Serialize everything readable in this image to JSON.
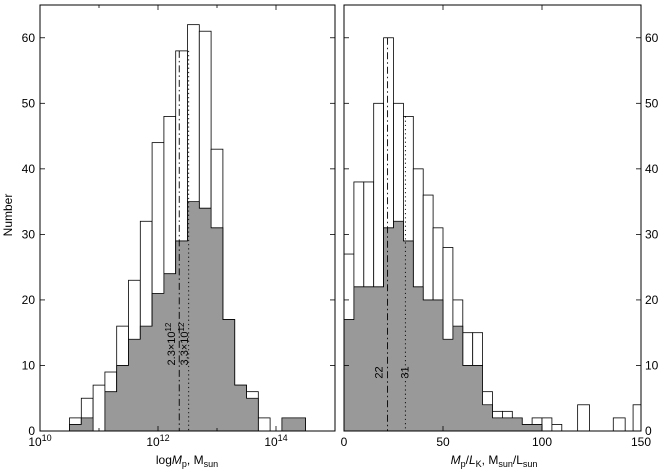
{
  "figure": {
    "ylabel": "Number"
  },
  "chart_data": [
    {
      "type": "histogram",
      "panel": "left",
      "xscale": "log",
      "xlim_log10": [
        10,
        15
      ],
      "ylim": [
        0,
        65
      ],
      "xlabel_main": "log",
      "xlabel_var": "M",
      "xlabel_sub": "p",
      "xlabel_tail": ", M",
      "xlabel_unit_sub": "sun",
      "x_ticks_log10": [
        10,
        12,
        14
      ],
      "x_tick_base": "10",
      "x_tick_exps": [
        "10",
        "12",
        "14"
      ],
      "y_ticks": [
        0,
        10,
        20,
        30,
        40,
        50,
        60
      ],
      "y_tick_labels": [
        "0",
        "10",
        "20",
        "30",
        "40",
        "50",
        "60"
      ],
      "bin_edges_log10": [
        10.5,
        10.7,
        10.9,
        11.1,
        11.3,
        11.5,
        11.7,
        11.9,
        12.1,
        12.3,
        12.5,
        12.7,
        12.9,
        13.1,
        13.3,
        13.5,
        13.7,
        13.9,
        14.1,
        14.3,
        14.5
      ],
      "series": [
        {
          "style": "outline",
          "values": [
            2,
            5,
            7,
            9,
            16,
            23,
            32,
            44,
            48,
            58,
            62,
            61,
            43,
            17,
            7,
            6,
            2,
            0,
            2,
            2
          ]
        },
        {
          "style": "filled",
          "values": [
            1,
            2,
            0,
            6,
            10,
            14,
            16,
            21,
            24,
            29,
            35,
            34,
            31,
            17,
            7,
            5,
            0,
            0,
            2,
            2
          ]
        }
      ],
      "lines": [
        {
          "style": "dash-dot",
          "x_log10": 12.36,
          "y_top": 58
        },
        {
          "style": "dotted",
          "x_log10": 12.52,
          "y_top": 58
        }
      ],
      "annotations": [
        {
          "base": "2.3×10",
          "exp": "12",
          "x_log10": 12.36,
          "y": 10
        },
        {
          "base": "3.3×10",
          "exp": "12",
          "x_log10": 12.58,
          "y": 10
        }
      ]
    },
    {
      "type": "histogram",
      "panel": "right",
      "xlim": [
        0,
        150
      ],
      "ylim": [
        0,
        65
      ],
      "xlabel_var1": "M",
      "xlabel_sub1": "p",
      "xlabel_slash": "/",
      "xlabel_var2": "L",
      "xlabel_sub2": "K",
      "xlabel_comma": ", M",
      "xlabel_unit1": "sun",
      "xlabel_slash2": "/L",
      "xlabel_unit2": "sun",
      "x_ticks": [
        0,
        50,
        100,
        150
      ],
      "x_tick_labels": [
        "0",
        "50",
        "100",
        "150"
      ],
      "y_ticks": [
        0,
        10,
        20,
        30,
        40,
        50,
        60
      ],
      "y_tick_labels": [
        "0",
        "10",
        "20",
        "30",
        "40",
        "50",
        "60"
      ],
      "bin_width": 5,
      "bin_start": 0,
      "series": [
        {
          "style": "outline",
          "values": [
            27,
            38,
            38,
            50,
            60,
            50,
            48,
            40,
            36,
            31,
            28,
            20,
            15,
            15,
            6,
            3,
            3,
            2,
            1,
            2,
            2,
            1,
            0,
            0,
            0,
            0,
            0,
            0,
            0,
            0
          ]
        },
        {
          "style": "filled",
          "values": [
            17,
            22,
            22,
            22,
            31,
            32,
            29,
            22,
            20,
            20,
            14,
            16,
            10,
            10,
            4,
            2,
            2,
            2,
            1,
            1,
            0,
            0,
            0,
            0,
            0,
            0,
            0,
            0,
            0,
            0
          ]
        }
      ],
      "outline_extra": [
        {
          "from": 118,
          "to": 124,
          "value": 4
        },
        {
          "from": 136,
          "to": 142,
          "value": 2
        },
        {
          "from": 146,
          "to": 150,
          "value": 4
        }
      ],
      "lines": [
        {
          "style": "dash-dot",
          "x": 22,
          "y_top": 60
        },
        {
          "style": "dotted",
          "x": 31,
          "y_top": 48
        }
      ],
      "annotations": [
        {
          "text": "22",
          "x": 20,
          "y": 8
        },
        {
          "text": "31",
          "x": 33,
          "y": 8
        }
      ]
    }
  ]
}
